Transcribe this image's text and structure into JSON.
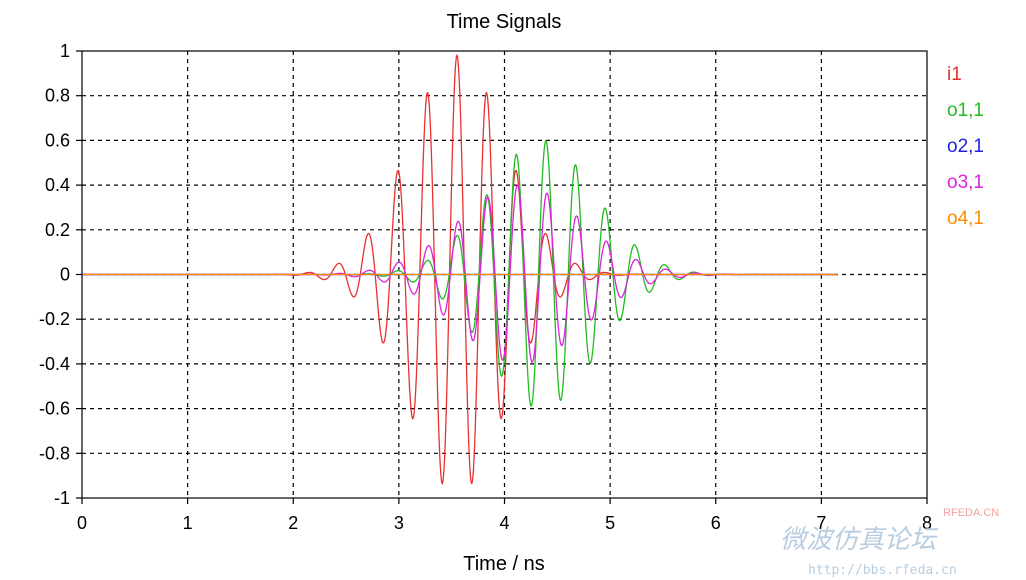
{
  "chart_data": {
    "type": "line",
    "title": "Time Signals",
    "xlabel": "Time / ns",
    "ylabel": "",
    "xlim": [
      0,
      8
    ],
    "ylim": [
      -1,
      1
    ],
    "grid": true,
    "legend_position": "right",
    "x_ticks": [
      "0",
      "1",
      "2",
      "3",
      "4",
      "5",
      "6",
      "7",
      "8"
    ],
    "y_ticks": [
      "1",
      "0.8",
      "0.6",
      "0.4",
      "0.2",
      "0",
      "-0.2",
      "-0.4",
      "-0.6",
      "-0.8",
      "-1"
    ],
    "x_tick_values": [
      0,
      1,
      2,
      3,
      4,
      5,
      6,
      7,
      8
    ],
    "y_tick_values": [
      1,
      0.8,
      0.6,
      0.4,
      0.2,
      0,
      -0.2,
      -0.4,
      -0.6,
      -0.8,
      -1
    ],
    "series": [
      {
        "name": "i1",
        "color": "#e83030",
        "envelope": {
          "peak_amplitude": 0.98,
          "center_ns": 3.55,
          "width_ns": 0.65,
          "frequency_ghz": 3.55,
          "phase_cycles": 0.25,
          "t_end": 7.15
        }
      },
      {
        "name": "o1,1",
        "color": "#22bb22",
        "envelope": {
          "peak_amplitude": 0.6,
          "center_ns": 4.35,
          "width_ns": 0.72,
          "frequency_ghz": 3.55,
          "phase_cycles": 0.1,
          "t_end": 7.15
        }
      },
      {
        "name": "o2,1",
        "color": "#2222dd",
        "envelope": {
          "peak_amplitude": 0.0,
          "center_ns": 4.0,
          "width_ns": 0.7,
          "frequency_ghz": 3.55,
          "phase_cycles": 0.0,
          "t_end": 7.15
        }
      },
      {
        "name": "o3,1",
        "color": "#dd22dd",
        "envelope": {
          "peak_amplitude": 0.4,
          "center_ns": 4.15,
          "width_ns": 0.82,
          "frequency_ghz": 3.55,
          "phase_cycles": 0.35,
          "t_end": 7.15
        }
      },
      {
        "name": "o4,1",
        "color": "#ff8c00",
        "envelope": {
          "peak_amplitude": 0.0,
          "center_ns": 4.0,
          "width_ns": 0.7,
          "frequency_ghz": 3.55,
          "phase_cycles": 0.0,
          "t_end": 7.15
        }
      }
    ]
  },
  "watermark": {
    "site": "RFEDA.CN",
    "chinese": "微波仿真论坛",
    "url": "http://bbs.rfeda.cn"
  }
}
